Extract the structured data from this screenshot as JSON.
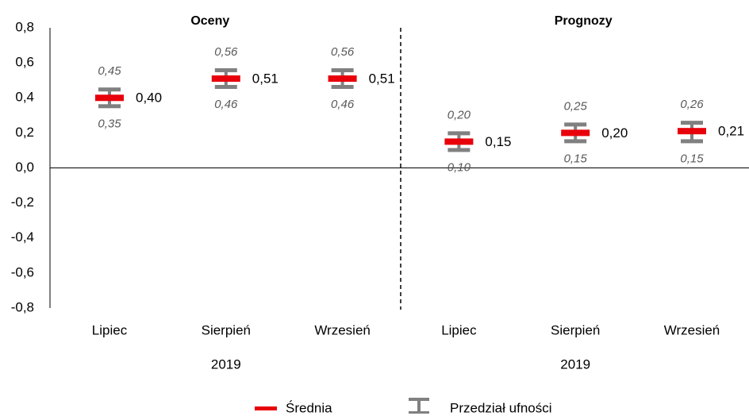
{
  "chart_data": {
    "type": "interval",
    "categories": [
      "Lipiec",
      "Sierpień",
      "Wrzesień",
      "Lipiec",
      "Sierpień",
      "Wrzesień"
    ],
    "groups": [
      {
        "title": "Oceny",
        "year": "2019"
      },
      {
        "title": "Prognozy",
        "year": "2019"
      }
    ],
    "series": [
      {
        "name": "Średnia",
        "color": "#e8000b",
        "values": [
          0.4,
          0.51,
          0.51,
          0.15,
          0.2,
          0.21
        ],
        "value_labels": [
          "0,40",
          "0,51",
          "0,51",
          "0,15",
          "0,20",
          "0,21"
        ]
      },
      {
        "name": "Przedział ufności",
        "color": "#808080",
        "upper": [
          0.45,
          0.56,
          0.56,
          0.2,
          0.25,
          0.26
        ],
        "upper_labels": [
          "0,45",
          "0,56",
          "0,56",
          "0,20",
          "0,25",
          "0,26"
        ],
        "lower": [
          0.35,
          0.46,
          0.46,
          0.1,
          0.15,
          0.15
        ],
        "lower_labels": [
          "0,35",
          "0,46",
          "0,46",
          "0,10",
          "0,15",
          "0,15"
        ]
      }
    ],
    "ylim": [
      -0.8,
      0.8
    ],
    "yticks": [
      {
        "value": -0.8,
        "label": "-0,8"
      },
      {
        "value": -0.6,
        "label": "-0,6"
      },
      {
        "value": -0.4,
        "label": "-0,4"
      },
      {
        "value": -0.2,
        "label": "-0,2"
      },
      {
        "value": 0,
        "label": "0,0"
      },
      {
        "value": 0.2,
        "label": "0,2"
      },
      {
        "value": 0.4,
        "label": "0,4"
      },
      {
        "value": 0.6,
        "label": "0,6"
      },
      {
        "value": 0.8,
        "label": "0,8"
      }
    ],
    "grid": false
  }
}
